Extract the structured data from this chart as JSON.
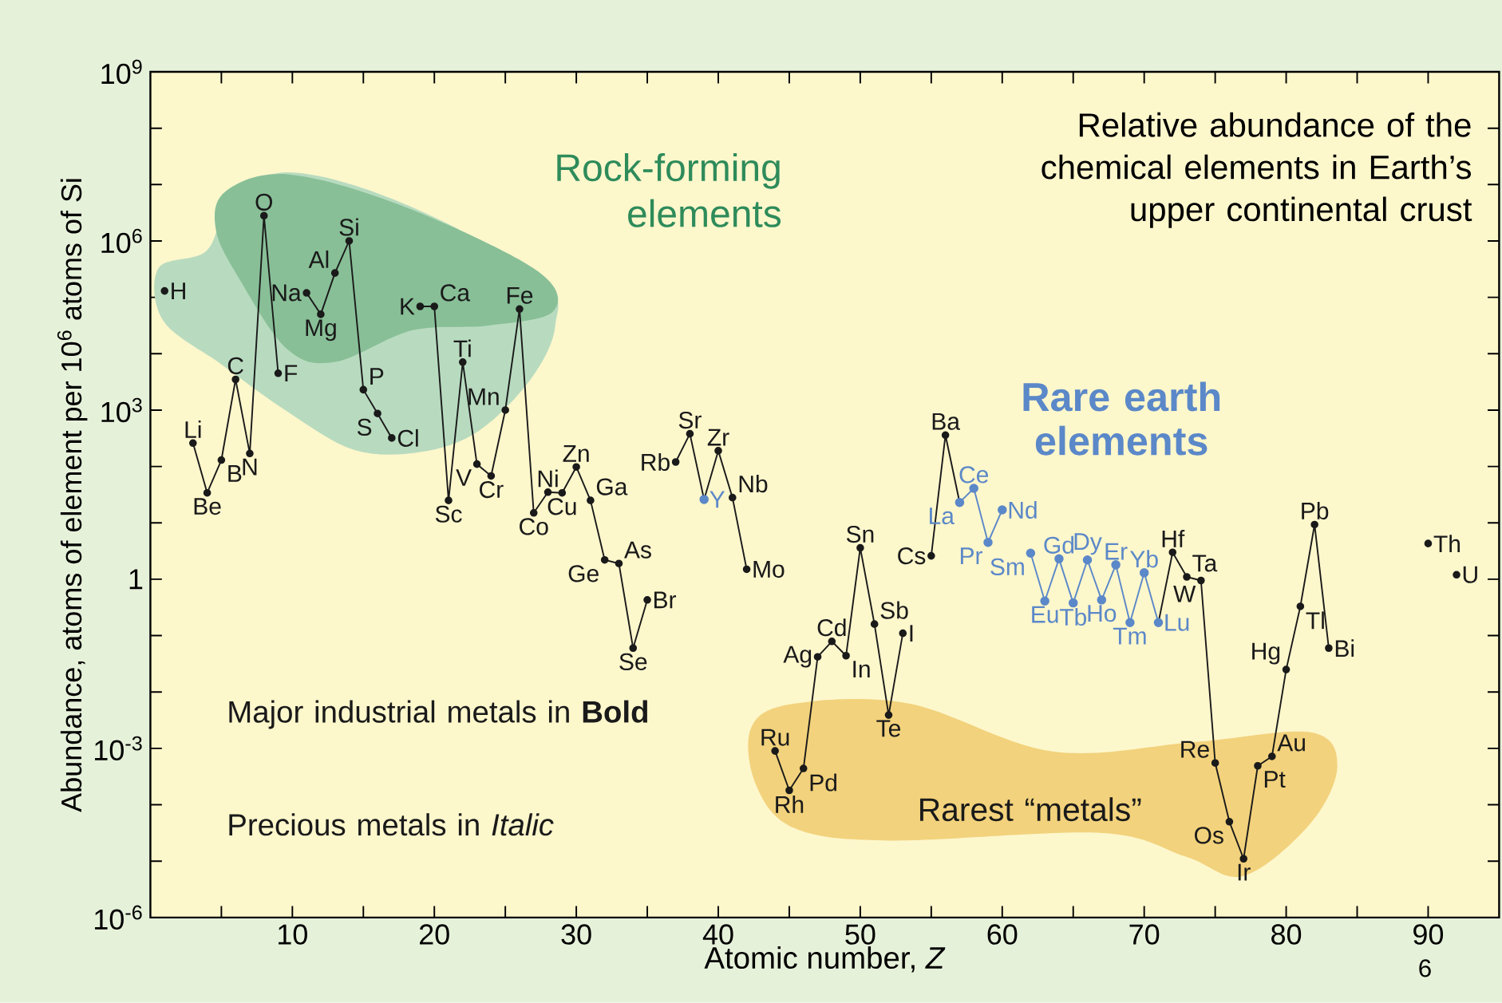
{
  "chart_data": {
    "type": "line",
    "title": "Relative abundance of the chemical elements in Earth’s upper continental crust",
    "xlabel": "Atomic number, *Z*",
    "ylabel": "Abundance, atoms of element per 10$^{6}$ atoms of Si",
    "log": "y",
    "marker": "circle",
    "xlim": [
      0,
      95
    ],
    "ylim": [
      1e-06,
      1000000000.0
    ],
    "xticks": [
      {
        "value": 5,
        "label": null
      },
      10,
      {
        "value": 15,
        "label": null
      },
      20,
      {
        "value": 25,
        "label": null
      },
      30,
      {
        "value": 35,
        "label": null
      },
      40,
      {
        "value": 45,
        "label": null
      },
      50,
      {
        "value": 55,
        "label": null
      },
      60,
      {
        "value": 65,
        "label": null
      },
      70,
      {
        "value": 75,
        "label": null
      },
      80,
      {
        "value": 85,
        "label": null
      },
      90
    ],
    "yticks": [
      {
        "value": 1e-06,
        "label": "10$^{-6}$"
      },
      {
        "value": 1e-05,
        "label": null
      },
      {
        "value": 0.0001,
        "label": null
      },
      {
        "value": 0.001,
        "label": "10$^{-3}$"
      },
      {
        "value": 0.01,
        "label": null
      },
      {
        "value": 0.1,
        "label": null
      },
      1,
      {
        "value": 10,
        "label": null
      },
      {
        "value": 100,
        "label": null
      },
      {
        "value": 1000,
        "label": "10$^{3}$"
      },
      {
        "value": 10000.0,
        "label": null
      },
      {
        "value": 100000.0,
        "label": null
      },
      {
        "value": 1000000.0,
        "label": "10$^{6}$"
      },
      {
        "value": 10000000.0,
        "label": null
      },
      {
        "value": 100000000.0,
        "label": null
      },
      {
        "value": 1000000000.0,
        "label": "10$^{9}$"
      }
    ],
    "series": [
      {
        "color": "#1a1a1a",
        "x": [
          1,
          2,
          3,
          4,
          5,
          6,
          7,
          8,
          9,
          10,
          11,
          12,
          13,
          14,
          15,
          16,
          17,
          18,
          19,
          20,
          21,
          22,
          23,
          24,
          25,
          26,
          27,
          28,
          29,
          30,
          31,
          32,
          33,
          34,
          35,
          36,
          37,
          38,
          39,
          40,
          41,
          42,
          43,
          44,
          45,
          46,
          47,
          48,
          49,
          50,
          51,
          52,
          53,
          54,
          55,
          56,
          57,
          58,
          59,
          60,
          61,
          62,
          63,
          64,
          65,
          66,
          67,
          68,
          69,
          70,
          71,
          72,
          73,
          74,
          75,
          76,
          77,
          78,
          79,
          80,
          81,
          82,
          83,
          84,
          85,
          86,
          87,
          88,
          89,
          90,
          91,
          92
        ],
        "values": [
          130000.0,
          null,
          260,
          34,
          130,
          3500,
          170,
          2800000.0,
          4500,
          null,
          120000.0,
          50000.0,
          270000.0,
          1000000.0,
          2300,
          870,
          320,
          null,
          69000.0,
          69000.0,
          25,
          7100,
          110,
          68,
          1000,
          62000.0,
          15,
          35,
          34,
          98,
          25,
          2.2,
          1.9,
          0.06,
          0.43,
          null,
          120,
          380,
          26,
          190,
          28,
          1.5,
          null,
          0.0009,
          0.00018,
          0.00044,
          0.042,
          0.079,
          0.044,
          3.6,
          0.16,
          0.0039,
          0.11,
          null,
          2.6,
          360,
          23,
          null,
          null,
          null,
          null,
          null,
          null,
          null,
          null,
          null,
          null,
          null,
          null,
          null,
          0.17,
          3.0,
          1.1,
          0.95,
          0.00055,
          5e-05,
          1.1e-05,
          0.00049,
          0.00072,
          0.025,
          0.33,
          9.3,
          0.06,
          null,
          null,
          null,
          null,
          null,
          null,
          4.3,
          null,
          1.2
        ]
      },
      {
        "name": "Rare earth elements",
        "color": "#5b88c8",
        "x": [
          39,
          48,
          57,
          58,
          59,
          60,
          61,
          62,
          63,
          64,
          65,
          66,
          67,
          68,
          69,
          70,
          71
        ],
        "values": [
          26,
          null,
          23,
          41,
          4.5,
          17,
          null,
          2.9,
          0.41,
          2.3,
          0.38,
          2.2,
          0.43,
          1.8,
          0.17,
          1.3,
          0.17
        ]
      }
    ],
    "annotations": [
      "Rock-forming elements",
      "Rarest “metals”",
      "Major industrial metals in **Bold**",
      "Precious metals in *Italic*",
      "6",
      {
        "text": "H",
        "x": 1,
        "y": 130000.0
      },
      {
        "text": "Li",
        "x": 3,
        "y": 260
      },
      {
        "text": "Be",
        "x": 4,
        "y": 34
      },
      {
        "text": "B",
        "x": 5,
        "y": 130
      },
      {
        "text": "C",
        "x": 6,
        "y": 3500
      },
      {
        "text": "N",
        "x": 7,
        "y": 170
      },
      {
        "text": "O",
        "x": 8,
        "y": 2800000.0
      },
      {
        "text": "F",
        "x": 9,
        "y": 4500
      },
      {
        "text": "Na",
        "x": 11,
        "y": 120000.0
      },
      {
        "text": "Mg",
        "x": 12,
        "y": 50000.0
      },
      {
        "text": "Al",
        "x": 13,
        "y": 270000.0
      },
      {
        "text": "Si",
        "x": 14,
        "y": 1000000.0
      },
      {
        "text": "P",
        "x": 15,
        "y": 2300
      },
      {
        "text": "S",
        "x": 16,
        "y": 870
      },
      {
        "text": "Cl",
        "x": 17,
        "y": 320
      },
      {
        "text": "K",
        "x": 19,
        "y": 69000.0
      },
      {
        "text": "Ca",
        "x": 20,
        "y": 69000.0
      },
      {
        "text": "Sc",
        "x": 21,
        "y": 25
      },
      {
        "text": "Ti",
        "x": 22,
        "y": 7100
      },
      {
        "text": "V",
        "x": 23,
        "y": 110
      },
      {
        "text": "Cr",
        "x": 24,
        "y": 68
      },
      {
        "text": "Mn",
        "x": 25,
        "y": 1000
      },
      {
        "text": "Fe",
        "x": 26,
        "y": 62000.0
      },
      {
        "text": "Co",
        "x": 27,
        "y": 15
      },
      {
        "text": "Ni",
        "x": 28,
        "y": 35
      },
      {
        "text": "Cu",
        "x": 29,
        "y": 34
      },
      {
        "text": "Zn",
        "x": 30,
        "y": 98
      },
      {
        "text": "Ga",
        "x": 31,
        "y": 25
      },
      {
        "text": "Ge",
        "x": 32,
        "y": 2.2
      },
      {
        "text": "As",
        "x": 33,
        "y": 1.9
      },
      {
        "text": "Se",
        "x": 34,
        "y": 0.06
      },
      {
        "text": "Br",
        "x": 35,
        "y": 0.43
      },
      {
        "text": "Rb",
        "x": 37,
        "y": 120
      },
      {
        "text": "Sr",
        "x": 38,
        "y": 380
      },
      {
        "text": "Y",
        "x": 39,
        "y": 26
      },
      {
        "text": "Zr",
        "x": 40,
        "y": 190
      },
      {
        "text": "Nb",
        "x": 41,
        "y": 28
      },
      {
        "text": "Mo",
        "x": 42,
        "y": 1.5
      },
      {
        "text": "Ru",
        "x": 44,
        "y": 0.0009
      },
      {
        "text": "Rh",
        "x": 45,
        "y": 0.00018
      },
      {
        "text": "Pd",
        "x": 46,
        "y": 0.00044
      },
      {
        "text": "Ag",
        "x": 47,
        "y": 0.042
      },
      {
        "text": "Cd",
        "x": 48,
        "y": 0.079
      },
      {
        "text": "In",
        "x": 49,
        "y": 0.044
      },
      {
        "text": "Sn",
        "x": 50,
        "y": 3.6
      },
      {
        "text": "Sb",
        "x": 51,
        "y": 0.16
      },
      {
        "text": "Te",
        "x": 52,
        "y": 0.0039
      },
      {
        "text": "I",
        "x": 53,
        "y": 0.11
      },
      {
        "text": "Cs",
        "x": 55,
        "y": 2.6
      },
      {
        "text": "Ba",
        "x": 56,
        "y": 360
      },
      {
        "text": "La",
        "x": 57,
        "y": 23
      },
      {
        "text": "Ce",
        "x": 58,
        "y": 41
      },
      {
        "text": "Pr",
        "x": 59,
        "y": 4.5
      },
      {
        "text": "Nd",
        "x": 60,
        "y": 17
      },
      {
        "text": "Sm",
        "x": 62,
        "y": 2.9
      },
      {
        "text": "Eu",
        "x": 63,
        "y": 0.41
      },
      {
        "text": "Gd",
        "x": 64,
        "y": 2.3
      },
      {
        "text": "Tb",
        "x": 65,
        "y": 0.38
      },
      {
        "text": "Dy",
        "x": 66,
        "y": 2.2
      },
      {
        "text": "Ho",
        "x": 67,
        "y": 0.43
      },
      {
        "text": "Er",
        "x": 68,
        "y": 1.8
      },
      {
        "text": "Tm",
        "x": 69,
        "y": 0.17
      },
      {
        "text": "Yb",
        "x": 70,
        "y": 1.3
      },
      {
        "text": "Lu",
        "x": 71,
        "y": 0.17
      },
      {
        "text": "Hf",
        "x": 72,
        "y": 3.0
      },
      {
        "text": "Ta",
        "x": 73,
        "y": 1.1
      },
      {
        "text": "W",
        "x": 74,
        "y": 0.95
      },
      {
        "text": "Re",
        "x": 75,
        "y": 0.00055
      },
      {
        "text": "Os",
        "x": 76,
        "y": 5e-05
      },
      {
        "text": "Ir",
        "x": 77,
        "y": 1.1e-05
      },
      {
        "text": "Pt",
        "x": 78,
        "y": 0.00049
      },
      {
        "text": "Au",
        "x": 79,
        "y": 0.00072
      },
      {
        "text": "Hg",
        "x": 80,
        "y": 0.025
      },
      {
        "text": "Tl",
        "x": 81,
        "y": 0.33
      },
      {
        "text": "Pb",
        "x": 82,
        "y": 9.3
      },
      {
        "text": "Bi",
        "x": 83,
        "y": 0.06
      },
      {
        "text": "Th",
        "x": 90,
        "y": 4.3
      },
      {
        "text": "U",
        "x": 92,
        "y": 1.2
      }
    ]
  }
}
